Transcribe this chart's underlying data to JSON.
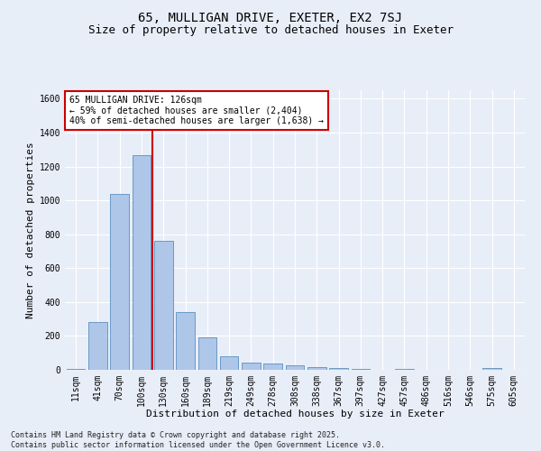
{
  "title1": "65, MULLIGAN DRIVE, EXETER, EX2 7SJ",
  "title2": "Size of property relative to detached houses in Exeter",
  "xlabel": "Distribution of detached houses by size in Exeter",
  "ylabel": "Number of detached properties",
  "categories": [
    "11sqm",
    "41sqm",
    "70sqm",
    "100sqm",
    "130sqm",
    "160sqm",
    "189sqm",
    "219sqm",
    "249sqm",
    "278sqm",
    "308sqm",
    "338sqm",
    "367sqm",
    "397sqm",
    "427sqm",
    "457sqm",
    "486sqm",
    "516sqm",
    "546sqm",
    "575sqm",
    "605sqm"
  ],
  "values": [
    5,
    280,
    1040,
    1265,
    760,
    340,
    190,
    80,
    45,
    38,
    28,
    18,
    10,
    5,
    0,
    5,
    0,
    0,
    0,
    10,
    0
  ],
  "bar_color": "#aec6e8",
  "bar_edge_color": "#5a8fc0",
  "bg_color": "#e8eef8",
  "grid_color": "#ffffff",
  "vline_color": "#cc0000",
  "annotation_text": "65 MULLIGAN DRIVE: 126sqm\n← 59% of detached houses are smaller (2,404)\n40% of semi-detached houses are larger (1,638) →",
  "annotation_box_color": "#cc0000",
  "annotation_fill": "#ffffff",
  "footer": "Contains HM Land Registry data © Crown copyright and database right 2025.\nContains public sector information licensed under the Open Government Licence v3.0.",
  "ylim": [
    0,
    1650
  ],
  "yticks": [
    0,
    200,
    400,
    600,
    800,
    1000,
    1200,
    1400,
    1600
  ],
  "title1_fontsize": 10,
  "title2_fontsize": 9,
  "tick_fontsize": 7,
  "axis_label_fontsize": 8,
  "annotation_fontsize": 7,
  "footer_fontsize": 6
}
